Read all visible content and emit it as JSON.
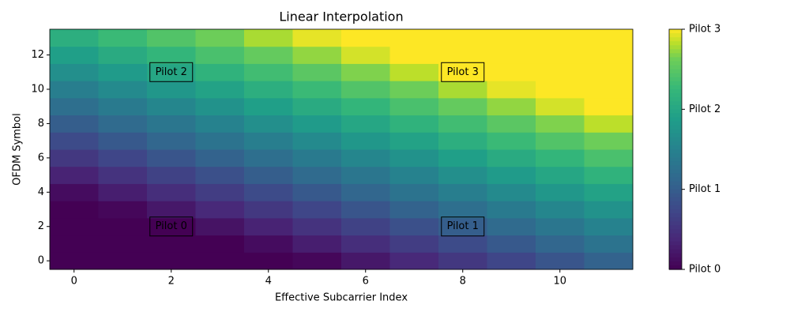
{
  "chart_data": {
    "type": "heatmap",
    "title": "Linear Interpolation",
    "x_label": "Effective Subcarrier Index",
    "y_label": "OFDM Symbol",
    "colormap": "viridis",
    "xlim": [
      -0.5,
      11.5
    ],
    "ylim": [
      -0.5,
      13.5
    ],
    "xticks": [
      0,
      2,
      4,
      6,
      8,
      10
    ],
    "yticks": [
      0,
      2,
      4,
      6,
      8,
      10,
      12
    ],
    "clim": [
      0,
      3
    ],
    "cticks": [
      {
        "value": 0,
        "label": "Pilot 0"
      },
      {
        "value": 1,
        "label": "Pilot 1"
      },
      {
        "value": 2,
        "label": "Pilot 2"
      },
      {
        "value": 3,
        "label": "Pilot 3"
      }
    ],
    "annotations": [
      {
        "text": "Pilot 0",
        "x": 2,
        "y": 2
      },
      {
        "text": "Pilot 1",
        "x": 8,
        "y": 2
      },
      {
        "text": "Pilot 2",
        "x": 2,
        "y": 11
      },
      {
        "text": "Pilot 3",
        "x": 8,
        "y": 11
      }
    ],
    "z": [
      [
        0,
        0,
        0,
        0,
        0,
        0.06,
        0.22,
        0.39,
        0.56,
        0.72,
        0.89,
        1.06
      ],
      [
        0,
        0,
        0,
        0,
        0.11,
        0.28,
        0.44,
        0.61,
        0.78,
        0.94,
        1.11,
        1.28
      ],
      [
        0,
        0,
        0,
        0.17,
        0.33,
        0.5,
        0.67,
        0.83,
        1,
        1.17,
        1.33,
        1.5
      ],
      [
        0,
        0.06,
        0.22,
        0.39,
        0.56,
        0.72,
        0.89,
        1.06,
        1.22,
        1.39,
        1.56,
        1.72
      ],
      [
        0.11,
        0.28,
        0.44,
        0.61,
        0.78,
        0.94,
        1.11,
        1.28,
        1.44,
        1.61,
        1.78,
        1.94
      ],
      [
        0.33,
        0.5,
        0.67,
        0.83,
        1,
        1.17,
        1.33,
        1.5,
        1.67,
        1.83,
        2,
        2.17
      ],
      [
        0.56,
        0.72,
        0.89,
        1.06,
        1.22,
        1.39,
        1.56,
        1.72,
        1.89,
        2.06,
        2.22,
        2.39
      ],
      [
        0.78,
        0.94,
        1.11,
        1.28,
        1.44,
        1.61,
        1.78,
        1.94,
        2.11,
        2.28,
        2.44,
        2.61
      ],
      [
        1,
        1.17,
        1.33,
        1.5,
        1.67,
        1.83,
        2,
        2.17,
        2.33,
        2.5,
        2.67,
        2.83
      ],
      [
        1.22,
        1.39,
        1.56,
        1.72,
        1.89,
        2.06,
        2.22,
        2.39,
        2.56,
        2.72,
        2.89,
        3
      ],
      [
        1.44,
        1.61,
        1.78,
        1.94,
        2.11,
        2.28,
        2.44,
        2.61,
        2.78,
        2.94,
        3,
        3
      ],
      [
        1.67,
        1.83,
        2,
        2.17,
        2.33,
        2.5,
        2.67,
        2.83,
        3,
        3,
        3,
        3
      ],
      [
        1.89,
        2.06,
        2.22,
        2.39,
        2.56,
        2.72,
        2.89,
        3,
        3,
        3,
        3,
        3
      ],
      [
        2.11,
        2.28,
        2.44,
        2.61,
        2.78,
        2.94,
        3,
        3,
        3,
        3,
        3,
        3
      ]
    ]
  }
}
